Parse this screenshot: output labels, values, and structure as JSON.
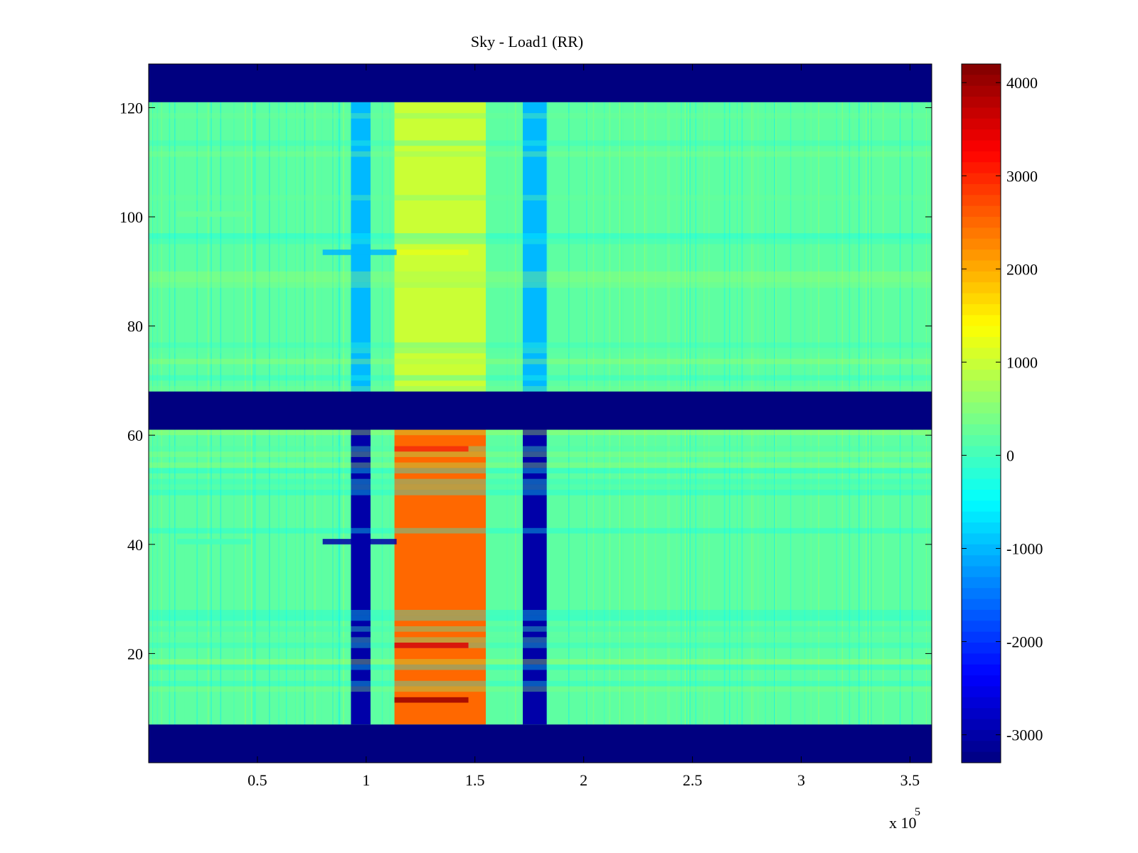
{
  "chart_data": {
    "type": "heatmap",
    "title": "Sky - Load1 (RR)",
    "xlabel": "",
    "ylabel": "",
    "x_multiplier_label": "x 10",
    "x_multiplier_exponent": "5",
    "xlim": [
      0,
      360000
    ],
    "ylim": [
      0,
      128
    ],
    "x_ticks": [
      {
        "value": 50000,
        "label": "0.5"
      },
      {
        "value": 100000,
        "label": "1"
      },
      {
        "value": 150000,
        "label": "1.5"
      },
      {
        "value": 200000,
        "label": "2"
      },
      {
        "value": 250000,
        "label": "2.5"
      },
      {
        "value": 300000,
        "label": "3"
      },
      {
        "value": 350000,
        "label": "3.5"
      }
    ],
    "y_ticks": [
      {
        "value": 20,
        "label": "20"
      },
      {
        "value": 40,
        "label": "40"
      },
      {
        "value": 60,
        "label": "60"
      },
      {
        "value": 80,
        "label": "80"
      },
      {
        "value": 100,
        "label": "100"
      },
      {
        "value": 120,
        "label": "120"
      }
    ],
    "colorbar": {
      "colormap": "jet",
      "clim": [
        -3300,
        4200
      ],
      "ticks": [
        {
          "value": 4000,
          "label": "4000"
        },
        {
          "value": 3000,
          "label": "3000"
        },
        {
          "value": 2000,
          "label": "2000"
        },
        {
          "value": 1000,
          "label": "1000"
        },
        {
          "value": 0,
          "label": "0"
        },
        {
          "value": -1000,
          "label": "-1000"
        },
        {
          "value": -2000,
          "label": "-2000"
        },
        {
          "value": -3000,
          "label": "-3000"
        }
      ]
    },
    "background_value": 200,
    "masked_value": -3300,
    "masked_y_ranges": [
      [
        0,
        7
      ],
      [
        61,
        68
      ],
      [
        121,
        128
      ]
    ],
    "x_bands": [
      {
        "x_range": [
          93000,
          102000
        ],
        "value": -1000,
        "value_lower": -3000
      },
      {
        "x_range": [
          113000,
          155000
        ],
        "value": 1000,
        "value_lower": 2500
      },
      {
        "x_range": [
          172000,
          183000
        ],
        "value": -1000,
        "value_lower": -3000
      }
    ],
    "cell_values_sample": [
      {
        "x": 130000,
        "y": 11,
        "value": 4000
      },
      {
        "x": 130000,
        "y": 21,
        "value": 3500
      },
      {
        "x": 130000,
        "y": 57,
        "value": 3000
      },
      {
        "x": 130000,
        "y": 93,
        "value": 1200
      },
      {
        "x": 97000,
        "y": 40,
        "value": -3000
      },
      {
        "x": 97000,
        "y": 93,
        "value": -1000
      },
      {
        "x": 30000,
        "y": 40,
        "value": 0
      },
      {
        "x": 30000,
        "y": 100,
        "value": 300
      }
    ],
    "grid": false
  }
}
